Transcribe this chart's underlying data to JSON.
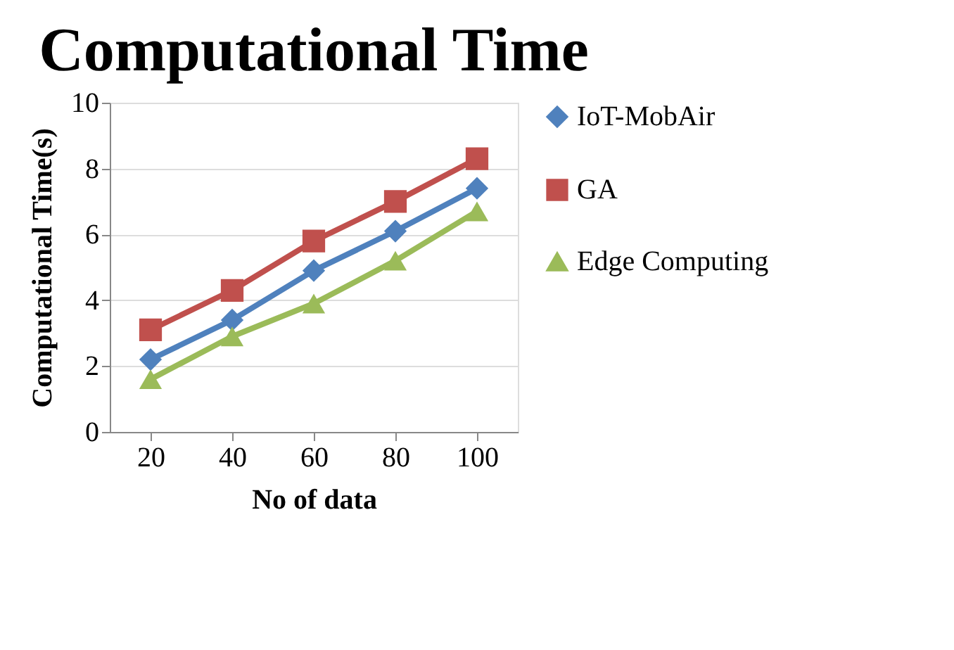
{
  "chart_data": {
    "type": "line",
    "title": "Computational Time",
    "xlabel": "No of data",
    "ylabel": "Computational Time(s)",
    "categories": [
      "20",
      "40",
      "60",
      "80",
      "100"
    ],
    "series": [
      {
        "name": "IoT-MobAir",
        "color": "#4f81bd",
        "marker": "diamond",
        "values": [
          2.2,
          3.4,
          4.9,
          6.1,
          7.4
        ]
      },
      {
        "name": "GA",
        "color": "#c0504d",
        "marker": "square",
        "values": [
          3.1,
          4.3,
          5.8,
          7.0,
          8.3
        ]
      },
      {
        "name": "Edge Computing",
        "color": "#9bbb59",
        "marker": "triangle",
        "values": [
          1.6,
          2.9,
          3.9,
          5.2,
          6.7
        ]
      }
    ],
    "ylim": [
      0,
      10
    ],
    "yticks": [
      0,
      2,
      4,
      6,
      8,
      10
    ],
    "grid": "y",
    "legend": "right",
    "line_style": "solid"
  }
}
